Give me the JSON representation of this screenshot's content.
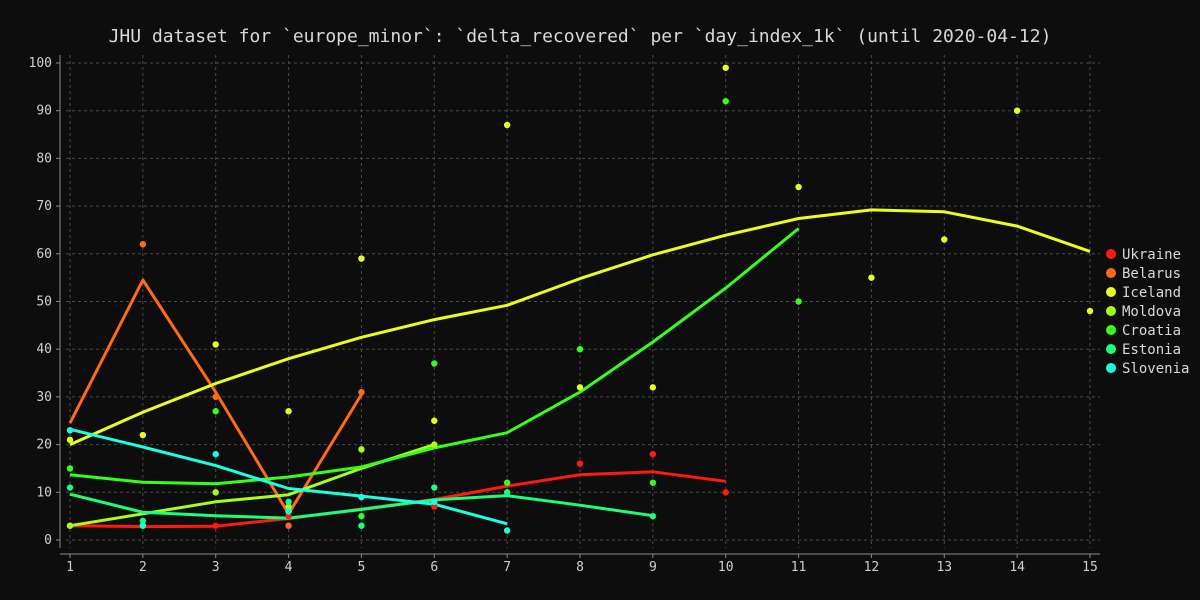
{
  "chart_data": {
    "type": "scatter",
    "title": "JHU dataset for `europe_minor`: `delta_recovered` per `day_index_1k` (until 2020-04-12)",
    "xlabel": "",
    "ylabel": "",
    "xlim": [
      1,
      15
    ],
    "ylim": [
      0,
      100
    ],
    "xticks": [
      1,
      2,
      3,
      4,
      5,
      6,
      7,
      8,
      9,
      10,
      11,
      12,
      13,
      14,
      15
    ],
    "yticks": [
      0,
      10,
      20,
      30,
      40,
      50,
      60,
      70,
      80,
      90,
      100
    ],
    "grid": true,
    "legend_position": "right",
    "series": [
      {
        "name": "Ukraine",
        "color": "#ff1a0d",
        "points": [
          [
            1,
            3
          ],
          [
            2,
            3
          ],
          [
            3,
            3
          ],
          [
            4,
            5
          ],
          [
            6,
            7
          ],
          [
            7,
            12
          ],
          [
            8,
            16
          ],
          [
            9,
            18
          ],
          [
            10,
            10
          ]
        ],
        "trend": [
          [
            1,
            3
          ],
          [
            2,
            2.8
          ],
          [
            3,
            2.9
          ],
          [
            4,
            4.5
          ],
          [
            5,
            6.5
          ],
          [
            6,
            8.5
          ],
          [
            7,
            11.3
          ],
          [
            8,
            13.7
          ],
          [
            9,
            14.3
          ],
          [
            10,
            12.3
          ]
        ]
      },
      {
        "name": "Belarus",
        "color": "#ff6a14",
        "points": [
          [
            1,
            23
          ],
          [
            2,
            62
          ],
          [
            3,
            30
          ],
          [
            4,
            3
          ],
          [
            5,
            31
          ]
        ],
        "trend": [
          [
            1,
            24.5
          ],
          [
            2,
            54.5
          ],
          [
            3,
            31
          ],
          [
            4,
            5.5
          ],
          [
            5,
            30.5
          ]
        ]
      },
      {
        "name": "Iceland",
        "color": "#e8ff1a",
        "points": [
          [
            1,
            21
          ],
          [
            2,
            22
          ],
          [
            3,
            41
          ],
          [
            4,
            27
          ],
          [
            5,
            59
          ],
          [
            6,
            25
          ],
          [
            7,
            87
          ],
          [
            8,
            32
          ],
          [
            9,
            32
          ],
          [
            10,
            99
          ],
          [
            11,
            74
          ],
          [
            12,
            55
          ],
          [
            13,
            63
          ],
          [
            14,
            90
          ],
          [
            15,
            48
          ]
        ],
        "trend": [
          [
            1,
            20
          ],
          [
            2,
            26.8
          ],
          [
            3,
            32.8
          ],
          [
            4,
            38
          ],
          [
            5,
            42.5
          ],
          [
            6,
            46.2
          ],
          [
            7,
            49.2
          ],
          [
            8,
            54.8
          ],
          [
            9,
            59.8
          ],
          [
            10,
            63.9
          ],
          [
            11,
            67.4
          ],
          [
            12,
            69.2
          ],
          [
            13,
            68.8
          ],
          [
            14,
            65.8
          ],
          [
            15,
            60.5
          ]
        ]
      },
      {
        "name": "Moldova",
        "color": "#a6ff1a",
        "points": [
          [
            1,
            3
          ],
          [
            3,
            10
          ],
          [
            4,
            7
          ],
          [
            5,
            19
          ],
          [
            6,
            20
          ]
        ],
        "trend": [
          [
            1,
            3
          ],
          [
            2,
            5.5
          ],
          [
            3,
            8
          ],
          [
            4,
            9.5
          ],
          [
            5,
            15
          ],
          [
            6,
            20
          ]
        ]
      },
      {
        "name": "Croatia",
        "color": "#33ff1a",
        "points": [
          [
            1,
            15
          ],
          [
            3,
            27
          ],
          [
            4,
            6
          ],
          [
            5,
            5
          ],
          [
            6,
            37
          ],
          [
            7,
            12
          ],
          [
            8,
            40
          ],
          [
            9,
            12
          ],
          [
            10,
            92
          ],
          [
            11,
            50
          ]
        ],
        "trend": [
          [
            1,
            13.7
          ],
          [
            2,
            12.1
          ],
          [
            3,
            11.8
          ],
          [
            4,
            13.2
          ],
          [
            5,
            15.3
          ],
          [
            6,
            19.3
          ],
          [
            7,
            22.5
          ],
          [
            8,
            31
          ],
          [
            9,
            41.5
          ],
          [
            10,
            52.8
          ],
          [
            11,
            65.3
          ]
        ]
      },
      {
        "name": "Estonia",
        "color": "#1aff7a",
        "points": [
          [
            1,
            11
          ],
          [
            2,
            4
          ],
          [
            4,
            8
          ],
          [
            5,
            3
          ],
          [
            6,
            11
          ],
          [
            7,
            10
          ],
          [
            9,
            5
          ]
        ],
        "trend": [
          [
            1,
            9.6
          ],
          [
            2,
            5.8
          ],
          [
            3,
            5.1
          ],
          [
            4,
            4.6
          ],
          [
            5,
            6.4
          ],
          [
            6,
            8.4
          ],
          [
            7,
            9.3
          ],
          [
            8,
            7.3
          ],
          [
            9,
            5.1
          ]
        ]
      },
      {
        "name": "Slovenia",
        "color": "#1affe0",
        "points": [
          [
            1,
            23
          ],
          [
            2,
            3
          ],
          [
            3,
            18
          ],
          [
            4,
            6
          ],
          [
            5,
            9
          ],
          [
            6,
            8
          ],
          [
            7,
            2
          ]
        ],
        "trend": [
          [
            1,
            23.2
          ],
          [
            2,
            19.5
          ],
          [
            3,
            15.6
          ],
          [
            4,
            10.8
          ],
          [
            5,
            9.2
          ],
          [
            6,
            7.5
          ],
          [
            7,
            3.4
          ]
        ]
      }
    ]
  }
}
